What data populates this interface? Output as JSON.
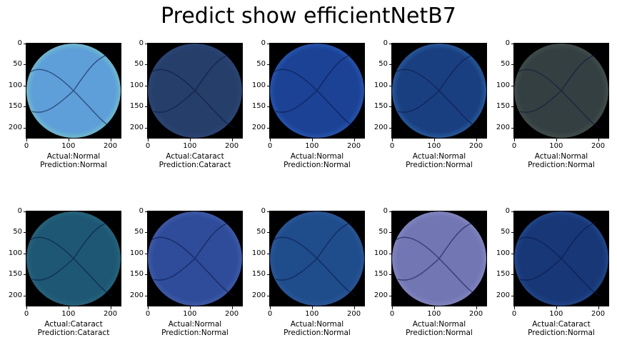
{
  "title": "Predict show efficientNetB7",
  "axis": {
    "yticks": [
      "0",
      "50",
      "100",
      "150",
      "200"
    ],
    "xticks": [
      "0",
      "100",
      "200"
    ]
  },
  "panels": [
    {
      "actual": "Actual:Normal",
      "prediction": "Prediction:Normal",
      "tone": "#5e9fd9",
      "edge": "#79d1c5"
    },
    {
      "actual": "Actual:Cataract",
      "prediction": "Prediction:Cataract",
      "tone": "#263e6a",
      "edge": "#2c4a7e"
    },
    {
      "actual": "Actual:Normal",
      "prediction": "Prediction:Normal",
      "tone": "#1b4294",
      "edge": "#2a62c7"
    },
    {
      "actual": "Actual:Normal",
      "prediction": "Prediction:Normal",
      "tone": "#1a3f80",
      "edge": "#2a6fb3"
    },
    {
      "actual": "Actual:Normal",
      "prediction": "Prediction:Normal",
      "tone": "#343f42",
      "edge": "#4a5750"
    },
    {
      "actual": "Actual:Cataract",
      "prediction": "Prediction:Cataract",
      "tone": "#1d5773",
      "edge": "#2a6c83"
    },
    {
      "actual": "Actual:Normal",
      "prediction": "Prediction:Normal",
      "tone": "#2f4c9a",
      "edge": "#4565b5"
    },
    {
      "actual": "Actual:Normal",
      "prediction": "Prediction:Normal",
      "tone": "#1f4c8b",
      "edge": "#2d5da2"
    },
    {
      "actual": "Actual:Normal",
      "prediction": "Prediction:Normal",
      "tone": "#7277b4",
      "edge": "#8a8ec8"
    },
    {
      "actual": "Actual:Cataract",
      "prediction": "Prediction:Normal",
      "tone": "#173777",
      "edge": "#26519a"
    }
  ]
}
